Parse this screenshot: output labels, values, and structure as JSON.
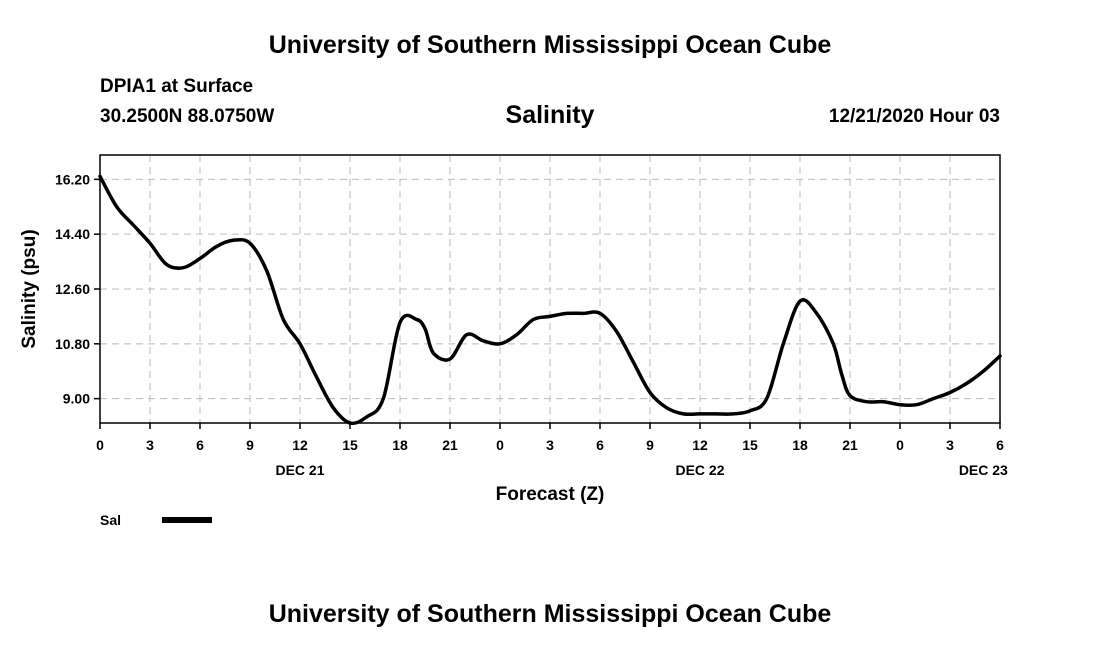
{
  "header": {
    "top_title": "University of Southern Mississippi Ocean Cube",
    "station": "DPIA1 at Surface",
    "coords": "30.2500N 88.0750W",
    "timestamp": "12/21/2020 Hour 03",
    "bottom_title": "University of Southern Mississippi Ocean Cube"
  },
  "chart_data": {
    "type": "line",
    "title": "Salinity",
    "xlabel": "Forecast (Z)",
    "ylabel": "Salinity (psu)",
    "ylim": [
      8.2,
      17.0
    ],
    "y_ticks": [
      9.0,
      10.8,
      12.6,
      14.4,
      16.2
    ],
    "y_tick_labels": [
      "9.00",
      "10.80",
      "12.60",
      "14.40",
      "16.20"
    ],
    "x_range_hours": [
      0,
      54
    ],
    "x_ticks": [
      0,
      3,
      6,
      9,
      12,
      15,
      18,
      21,
      24,
      27,
      30,
      33,
      36,
      39,
      42,
      45,
      48,
      51,
      54
    ],
    "x_tick_labels": [
      "0",
      "3",
      "6",
      "9",
      "12",
      "15",
      "18",
      "21",
      "0",
      "3",
      "6",
      "9",
      "12",
      "15",
      "18",
      "21",
      "0",
      "3",
      "6"
    ],
    "date_labels": [
      {
        "label": "DEC 21",
        "at": 12
      },
      {
        "label": "DEC 22",
        "at": 36
      },
      {
        "label": "DEC 23",
        "at": 53
      }
    ],
    "grid": true,
    "legend": {
      "placement": "bottom-left",
      "entries": [
        {
          "name": "Sal",
          "color": "#000000"
        }
      ]
    },
    "series": [
      {
        "name": "Sal",
        "color": "#000000",
        "x": [
          0,
          1,
          2,
          3,
          4,
          5,
          6,
          7,
          8,
          9,
          10,
          11,
          12,
          13,
          14,
          15,
          16,
          17,
          18,
          19,
          19.5,
          20,
          21,
          22,
          23,
          24,
          25,
          26,
          27,
          28,
          29,
          30,
          31,
          32,
          33,
          34,
          35,
          36,
          37,
          38,
          39,
          40,
          41,
          42,
          43,
          44,
          44.5,
          45,
          46,
          47,
          48,
          49,
          50,
          51,
          52,
          53,
          54
        ],
        "y": [
          16.3,
          15.3,
          14.7,
          14.1,
          13.4,
          13.3,
          13.6,
          14.0,
          14.2,
          14.1,
          13.2,
          11.6,
          10.8,
          9.7,
          8.7,
          8.2,
          8.4,
          9.0,
          11.5,
          11.6,
          11.3,
          10.5,
          10.3,
          11.1,
          10.9,
          10.8,
          11.1,
          11.6,
          11.7,
          11.8,
          11.8,
          11.8,
          11.2,
          10.2,
          9.2,
          8.7,
          8.5,
          8.5,
          8.5,
          8.5,
          8.6,
          9.0,
          10.8,
          12.2,
          11.8,
          10.8,
          9.8,
          9.1,
          8.9,
          8.9,
          8.8,
          8.8,
          9.0,
          9.2,
          9.5,
          9.9,
          10.4
        ]
      }
    ]
  }
}
